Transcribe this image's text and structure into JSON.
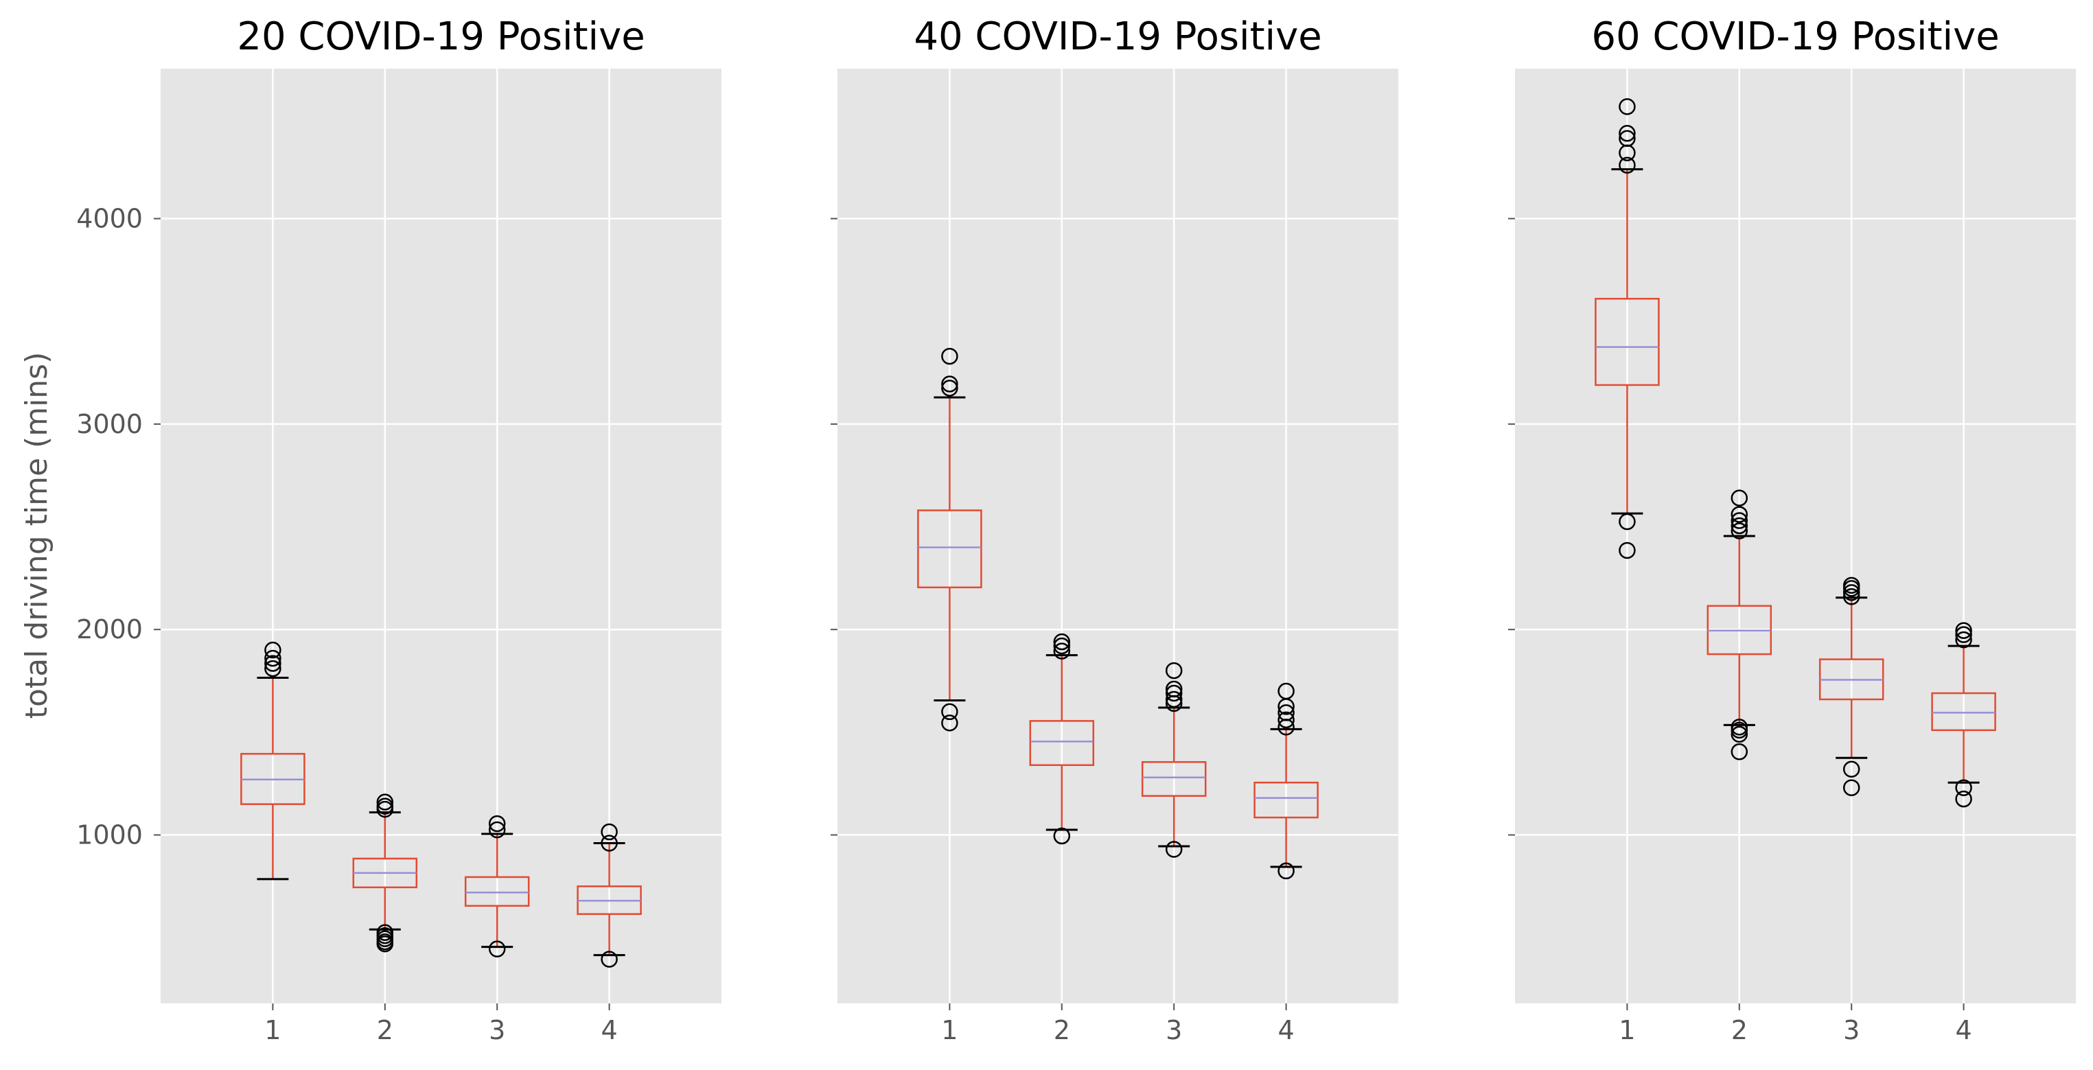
{
  "ylabel": "total driving time (mins)",
  "colors": {
    "panel_bg": "#E5E5E5",
    "grid": "#FFFFFF",
    "box": "#E24A33",
    "median": "#8EBA42",
    "median_alt": "#988ED5",
    "flier": "#000000",
    "whisker_cap": "#000000",
    "tick_text": "#555555"
  },
  "chart_data": [
    {
      "type": "box",
      "title": "20 COVID-19 Positive",
      "ylabel": "total driving time (mins)",
      "categories": [
        "1",
        "2",
        "3",
        "4"
      ],
      "yticks": [
        1000,
        2000,
        3000,
        4000
      ],
      "ylim": [
        180,
        4730
      ],
      "grid": true,
      "boxes": [
        {
          "label": "1",
          "whislo": 785,
          "q1": 1150,
          "med": 1270,
          "q3": 1395,
          "whishi": 1765,
          "fliers": [
            1810,
            1835,
            1860,
            1900
          ]
        },
        {
          "label": "2",
          "whislo": 540,
          "q1": 745,
          "med": 815,
          "q3": 885,
          "whishi": 1110,
          "fliers": [
            470,
            480,
            495,
            510,
            525,
            1125,
            1140,
            1160
          ]
        },
        {
          "label": "3",
          "whislo": 455,
          "q1": 655,
          "med": 720,
          "q3": 795,
          "whishi": 1005,
          "fliers": [
            445,
            1025,
            1055
          ]
        },
        {
          "label": "4",
          "whislo": 415,
          "q1": 615,
          "med": 680,
          "q3": 750,
          "whishi": 960,
          "fliers": [
            395,
            960,
            1015
          ]
        }
      ]
    },
    {
      "type": "box",
      "title": "40 COVID-19 Positive",
      "categories": [
        "1",
        "2",
        "3",
        "4"
      ],
      "yticks": [
        1000,
        2000,
        3000,
        4000
      ],
      "ylim": [
        180,
        4730
      ],
      "grid": true,
      "boxes": [
        {
          "label": "1",
          "whislo": 1655,
          "q1": 2205,
          "med": 2400,
          "q3": 2580,
          "whishi": 3130,
          "fliers": [
            1545,
            1600,
            3175,
            3195,
            3330
          ]
        },
        {
          "label": "2",
          "whislo": 1025,
          "q1": 1340,
          "med": 1455,
          "q3": 1555,
          "whishi": 1875,
          "fliers": [
            995,
            1895,
            1920,
            1940
          ]
        },
        {
          "label": "3",
          "whislo": 945,
          "q1": 1190,
          "med": 1280,
          "q3": 1355,
          "whishi": 1620,
          "fliers": [
            930,
            1640,
            1660,
            1690,
            1710,
            1800
          ]
        },
        {
          "label": "4",
          "whislo": 845,
          "q1": 1085,
          "med": 1180,
          "q3": 1255,
          "whishi": 1515,
          "fliers": [
            825,
            1525,
            1560,
            1595,
            1625,
            1700
          ]
        }
      ]
    },
    {
      "type": "box",
      "title": "60 COVID-19 Positive",
      "categories": [
        "1",
        "2",
        "3",
        "4"
      ],
      "yticks": [
        1000,
        2000,
        3000,
        4000
      ],
      "ylim": [
        180,
        4730
      ],
      "grid": true,
      "boxes": [
        {
          "label": "1",
          "whislo": 2565,
          "q1": 3190,
          "med": 3375,
          "q3": 3610,
          "whishi": 4240,
          "fliers": [
            2385,
            2525,
            4260,
            4320,
            4390,
            4415,
            4545
          ]
        },
        {
          "label": "2",
          "whislo": 1535,
          "q1": 1880,
          "med": 1995,
          "q3": 2115,
          "whishi": 2455,
          "fliers": [
            1405,
            1490,
            1510,
            1525,
            2480,
            2505,
            2530,
            2560,
            2640
          ]
        },
        {
          "label": "3",
          "whislo": 1375,
          "q1": 1660,
          "med": 1755,
          "q3": 1855,
          "whishi": 2155,
          "fliers": [
            1230,
            1320,
            2160,
            2180,
            2200,
            2215
          ]
        },
        {
          "label": "4",
          "whislo": 1255,
          "q1": 1510,
          "med": 1595,
          "q3": 1690,
          "whishi": 1920,
          "fliers": [
            1175,
            1230,
            1950,
            1975,
            1995
          ]
        }
      ]
    }
  ]
}
